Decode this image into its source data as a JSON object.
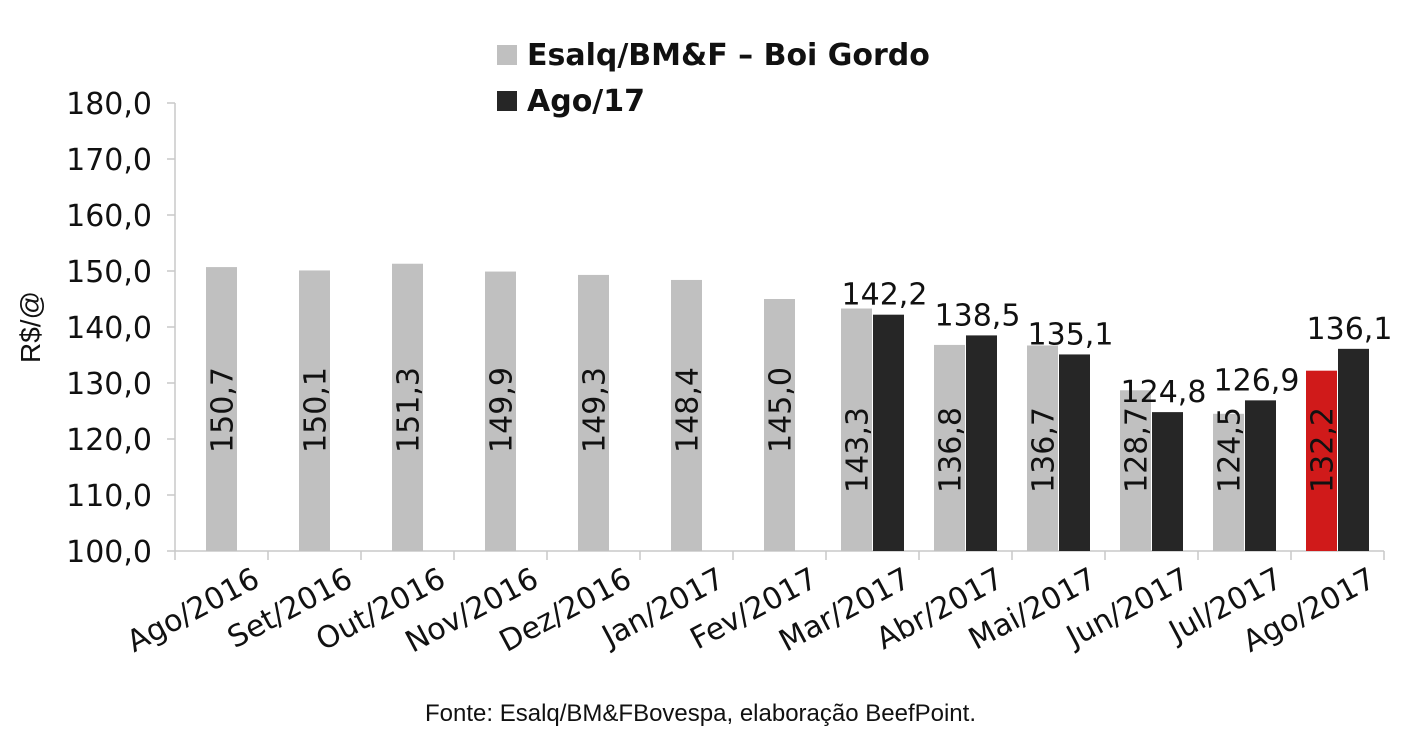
{
  "chart_data": {
    "type": "bar",
    "ylabel": "R$/@",
    "ylim": [
      100,
      180
    ],
    "yticks": [
      "100,0",
      "110,0",
      "120,0",
      "130,0",
      "140,0",
      "150,0",
      "160,0",
      "170,0",
      "180,0"
    ],
    "categories": [
      "Ago/2016",
      "Set/2016",
      "Out/2016",
      "Nov/2016",
      "Dez/2016",
      "Jan/2017",
      "Fev/2017",
      "Mar/2017",
      "Abr/2017",
      "Mai/2017",
      "Jun/2017",
      "Jul/2017",
      "Ago/2017"
    ],
    "series": [
      {
        "name": "Esalq/BM&F – Boi Gordo",
        "color": "#c0c0c0",
        "values": [
          150.7,
          150.1,
          151.3,
          149.9,
          149.3,
          148.4,
          145.0,
          143.3,
          136.8,
          136.7,
          128.7,
          124.5,
          132.2
        ],
        "labels": [
          "150,7",
          "150,1",
          "151,3",
          "149,9",
          "149,3",
          "148,4",
          "145,0",
          "143,3",
          "136,8",
          "136,7",
          "128,7",
          "124,5",
          "132,2"
        ]
      },
      {
        "name": "Ago/17",
        "color": "#262626",
        "values": [
          null,
          null,
          null,
          null,
          null,
          null,
          null,
          142.2,
          138.5,
          135.1,
          124.8,
          126.9,
          136.1
        ],
        "labels": [
          "",
          "",
          "",
          "",
          "",
          "",
          "",
          "142,2",
          "138,5",
          "135,1",
          "124,8",
          "126,9",
          "136,1"
        ]
      }
    ],
    "highlight": {
      "series": 0,
      "category": "Ago/2017",
      "color": "#d01a1a"
    },
    "grid": false,
    "legend_position": "top-center"
  },
  "source": "Fonte: Esalq/BM&FBovespa, elaboração BeefPoint."
}
